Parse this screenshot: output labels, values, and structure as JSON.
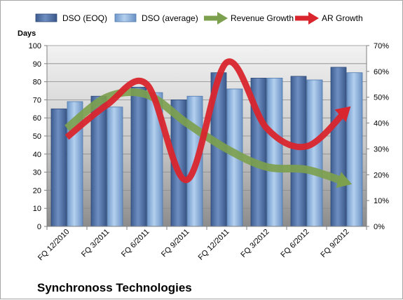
{
  "chart_data": {
    "type": "bar",
    "title": "Synchronoss Technologies",
    "ylabel": "Days",
    "ylim": [
      0,
      100
    ],
    "y2lim": [
      0,
      0.7
    ],
    "yticks": [
      "0",
      "10",
      "20",
      "30",
      "40",
      "50",
      "60",
      "70",
      "80",
      "90",
      "100"
    ],
    "y2ticks": [
      "0%",
      "10%",
      "20%",
      "30%",
      "40%",
      "50%",
      "60%",
      "70%"
    ],
    "categories": [
      "FQ 12/2010",
      "FQ 3/2011",
      "FQ 6/2011",
      "FQ 9/2011",
      "FQ 12/2011",
      "FQ 3/2012",
      "FQ 6/2012",
      "FQ 9/2012"
    ],
    "legend_position": "top",
    "grid": true,
    "series": [
      {
        "name": "DSO (EOQ)",
        "type": "bar",
        "axis": "left",
        "color": "#4f6fa3",
        "values": [
          65,
          72,
          77,
          70,
          85,
          82,
          83,
          88
        ]
      },
      {
        "name": "DSO (average)",
        "type": "bar",
        "axis": "left",
        "color": "#8fb4de",
        "values": [
          69,
          66,
          74,
          72,
          76,
          82,
          81,
          85
        ]
      },
      {
        "name": "Revenue Growth",
        "type": "line",
        "axis": "right",
        "color": "#7ca04d",
        "values": [
          0.38,
          0.5,
          0.51,
          0.4,
          0.3,
          0.23,
          0.22,
          0.17
        ]
      },
      {
        "name": "AR Growth",
        "type": "line",
        "axis": "right",
        "color": "#d9252d",
        "values": [
          0.345,
          0.47,
          0.55,
          0.18,
          0.635,
          0.38,
          0.31,
          0.45
        ]
      }
    ]
  }
}
